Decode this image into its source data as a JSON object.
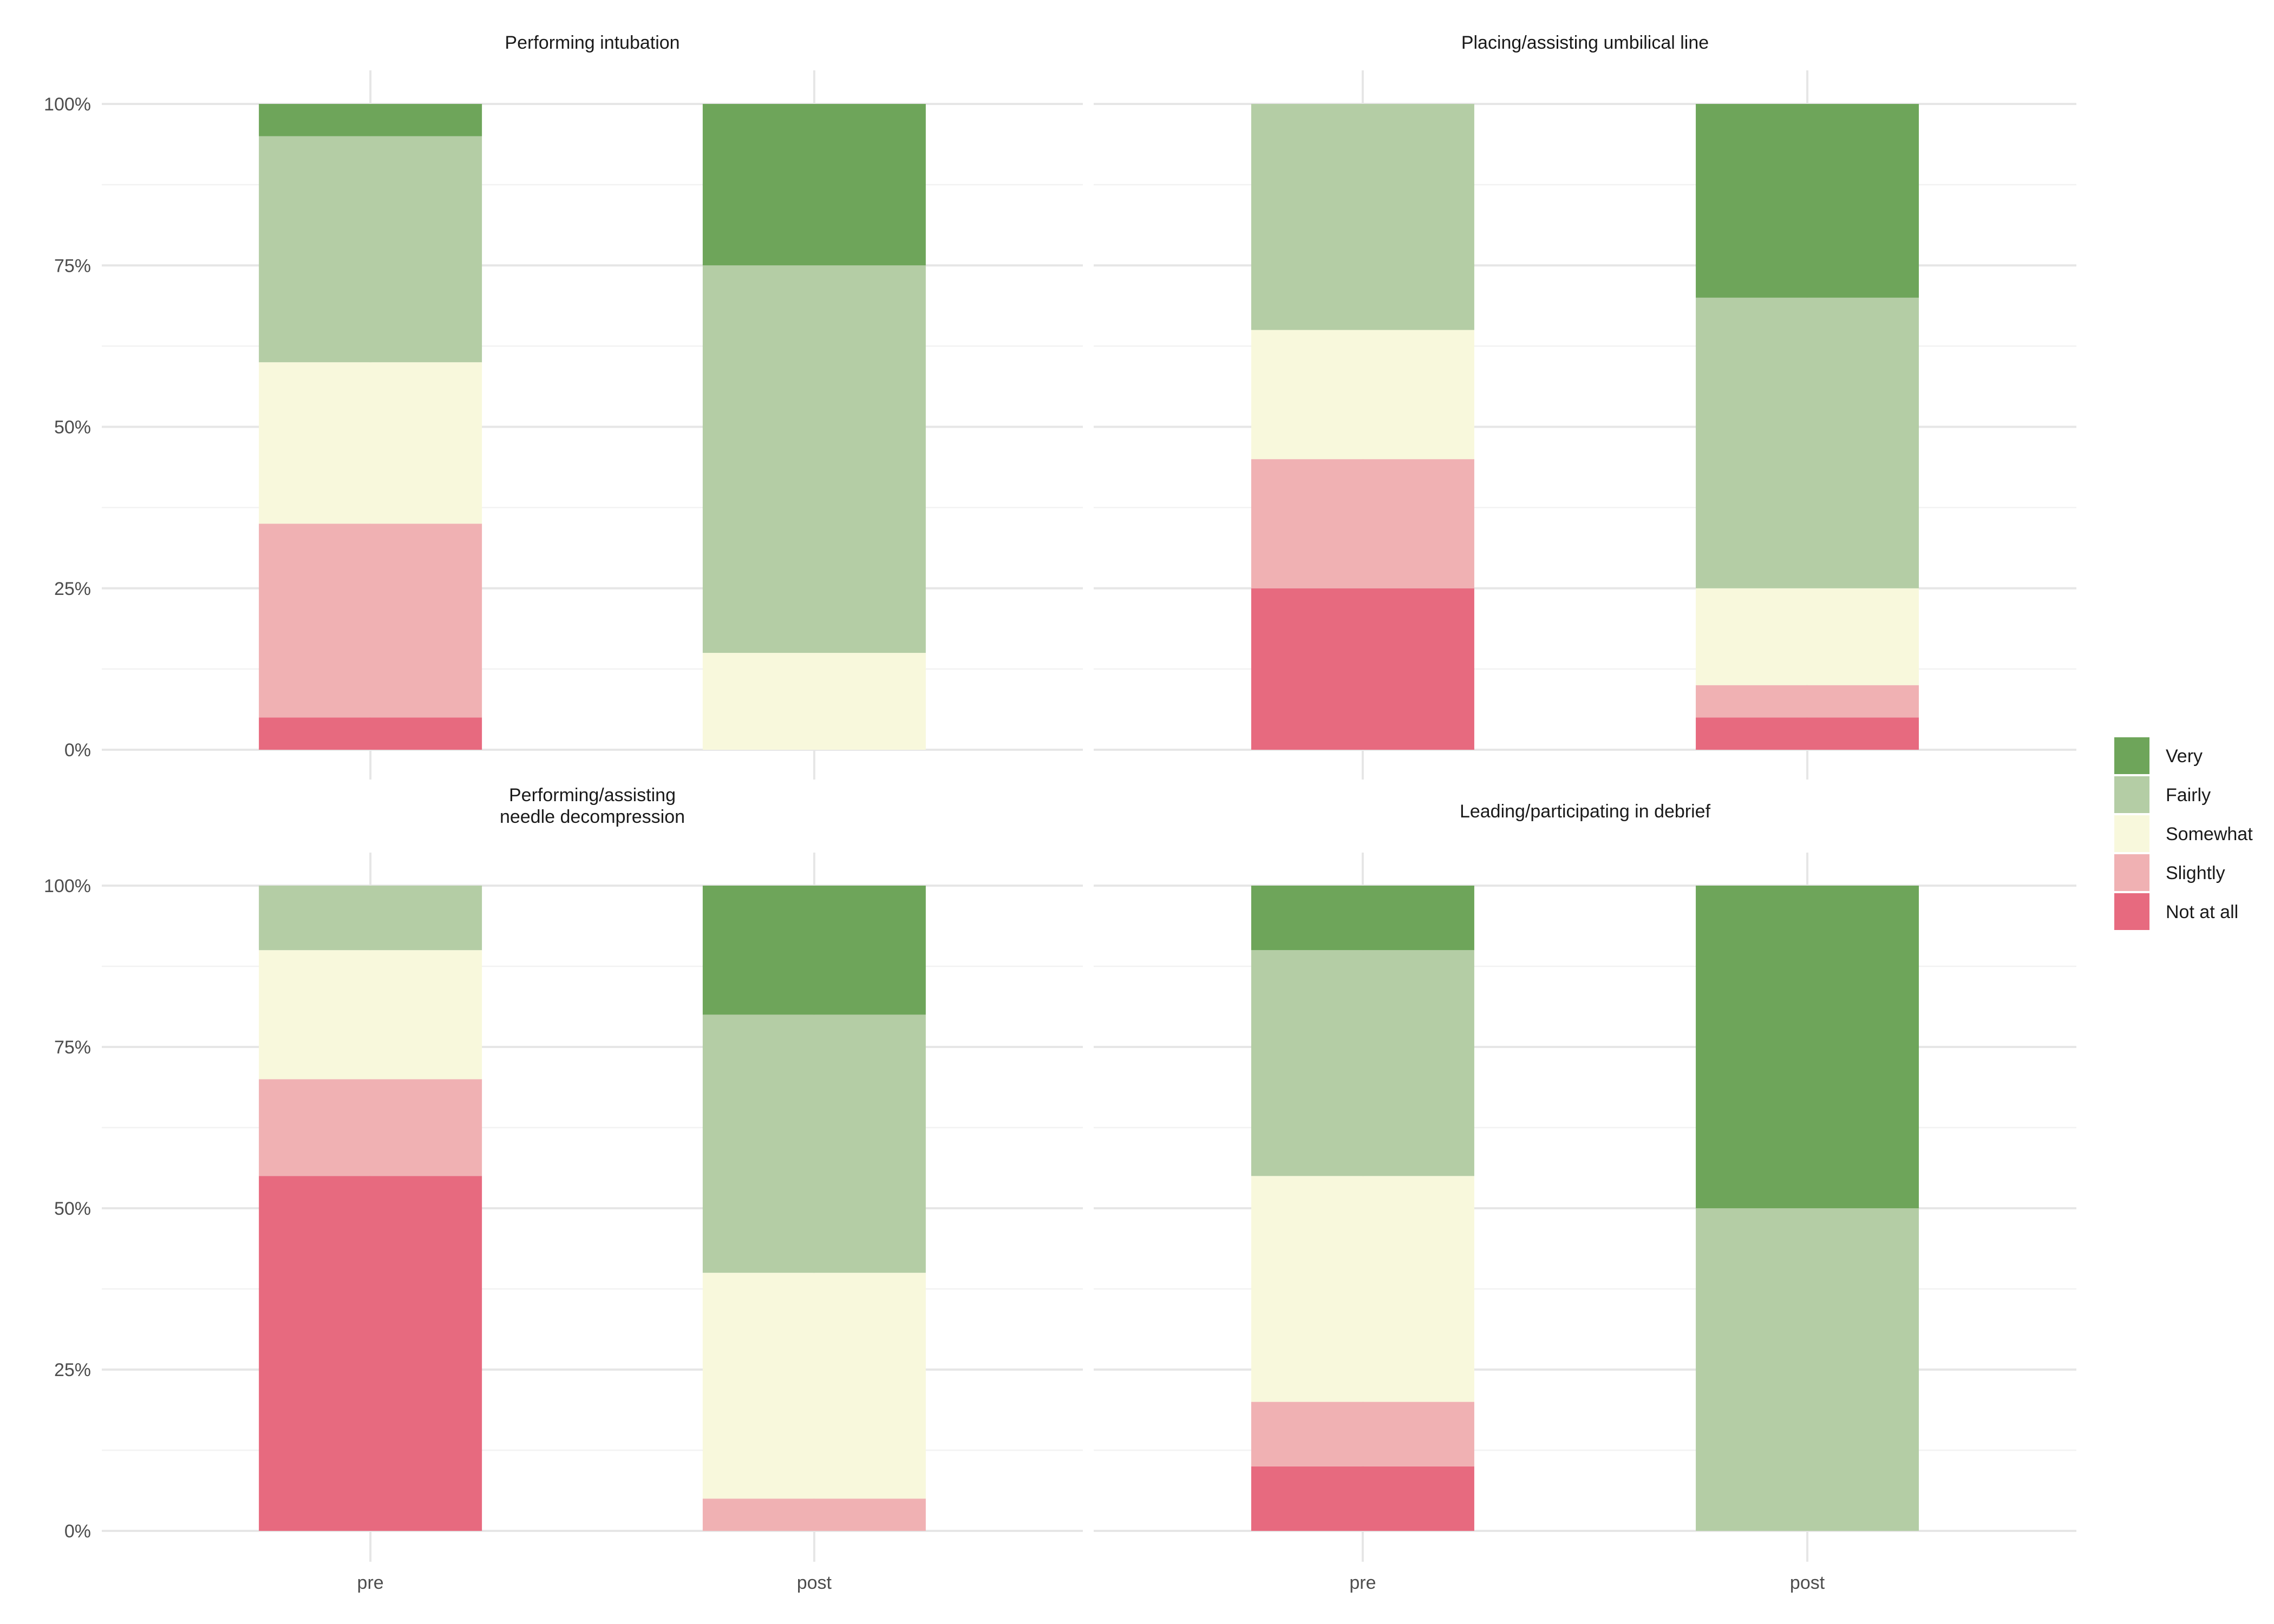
{
  "chart_data": {
    "type": "bar",
    "stacked": true,
    "facets": [
      {
        "title": [
          "Performing intubation"
        ],
        "categories": [
          "pre",
          "post"
        ],
        "series": [
          {
            "name": "Not at all",
            "values": [
              5,
              0
            ]
          },
          {
            "name": "Slightly",
            "values": [
              30,
              0
            ]
          },
          {
            "name": "Somewhat",
            "values": [
              25,
              15
            ]
          },
          {
            "name": "Fairly",
            "values": [
              35,
              60
            ]
          },
          {
            "name": "Very",
            "values": [
              5,
              25
            ]
          }
        ]
      },
      {
        "title": [
          "Placing/assisting umbilical line"
        ],
        "categories": [
          "pre",
          "post"
        ],
        "series": [
          {
            "name": "Not at all",
            "values": [
              25,
              5
            ]
          },
          {
            "name": "Slightly",
            "values": [
              20,
              5
            ]
          },
          {
            "name": "Somewhat",
            "values": [
              20,
              15
            ]
          },
          {
            "name": "Fairly",
            "values": [
              35,
              45
            ]
          },
          {
            "name": "Very",
            "values": [
              0,
              30
            ]
          }
        ]
      },
      {
        "title": [
          "Performing/assisting",
          "needle decompression"
        ],
        "categories": [
          "pre",
          "post"
        ],
        "series": [
          {
            "name": "Not at all",
            "values": [
              55,
              0
            ]
          },
          {
            "name": "Slightly",
            "values": [
              15,
              5
            ]
          },
          {
            "name": "Somewhat",
            "values": [
              20,
              35
            ]
          },
          {
            "name": "Fairly",
            "values": [
              10,
              40
            ]
          },
          {
            "name": "Very",
            "values": [
              0,
              20
            ]
          }
        ]
      },
      {
        "title": [
          "Leading/participating in debrief"
        ],
        "categories": [
          "pre",
          "post"
        ],
        "series": [
          {
            "name": "Not at all",
            "values": [
              10,
              0
            ]
          },
          {
            "name": "Slightly",
            "values": [
              10,
              0
            ]
          },
          {
            "name": "Somewhat",
            "values": [
              35,
              0
            ]
          },
          {
            "name": "Fairly",
            "values": [
              35,
              50
            ]
          },
          {
            "name": "Very",
            "values": [
              10,
              50
            ]
          }
        ]
      }
    ],
    "y_ticks": [
      "0%",
      "25%",
      "50%",
      "75%",
      "100%"
    ],
    "ylim": [
      0,
      100
    ],
    "grid": true,
    "legend": {
      "placement": "right",
      "entries": [
        "Very",
        "Fairly",
        "Somewhat",
        "Slightly",
        "Not at all"
      ]
    },
    "colors": {
      "Very": "#6ea55a",
      "Fairly": "#b4cda5",
      "Somewhat": "#f8f8dc",
      "Slightly": "#f0b1b3",
      "Not at all": "#e76a7f"
    }
  }
}
